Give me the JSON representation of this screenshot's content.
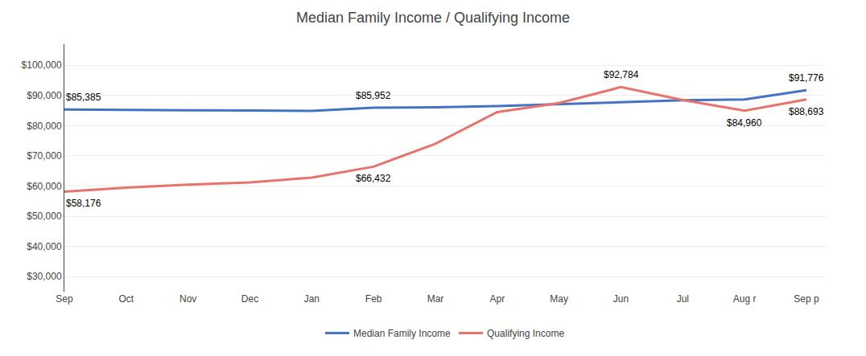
{
  "chart_data": {
    "type": "line",
    "title": "Median Family Income / Qualifying Income",
    "categories": [
      "Sep",
      "Oct",
      "Nov",
      "Dec",
      "Jan",
      "Feb",
      "Mar",
      "Apr",
      "May",
      "Jun",
      "Jul",
      "Aug r",
      "Sep p"
    ],
    "series": [
      {
        "name": "Median Family Income",
        "color": "#4472C4",
        "values": [
          85385,
          85200,
          85100,
          85050,
          84900,
          85952,
          86100,
          86500,
          87200,
          87800,
          88400,
          88693,
          91776
        ]
      },
      {
        "name": "Qualifying Income",
        "color": "#E8736C",
        "values": [
          58176,
          59500,
          60500,
          61200,
          62800,
          66432,
          74000,
          84500,
          87500,
          92784,
          88500,
          84960,
          88693
        ]
      }
    ],
    "ylim": [
      25000,
      107000
    ],
    "yticks": [
      {
        "value": 30000,
        "label": "$30,000"
      },
      {
        "value": 40000,
        "label": "$40,000"
      },
      {
        "value": 50000,
        "label": "$50,000"
      },
      {
        "value": 60000,
        "label": "$60,000"
      },
      {
        "value": 70000,
        "label": "$70,000"
      },
      {
        "value": 80000,
        "label": "$80,000"
      },
      {
        "value": 90000,
        "label": "$90,000"
      },
      {
        "value": 100000,
        "label": "$100,000"
      }
    ],
    "grid": true,
    "legend": "bottom",
    "annotations": [
      {
        "series": "Median Family Income",
        "x": "Sep",
        "y": 85385,
        "text": "$85,385"
      },
      {
        "series": "Median Family Income",
        "x": "Feb",
        "y": 85952,
        "text": "$85,952"
      },
      {
        "series": "Median Family Income",
        "x": "Sep p",
        "y": 91776,
        "text": "$91,776"
      },
      {
        "series": "Qualifying Income",
        "x": "Sep",
        "y": 58176,
        "text": "$58,176"
      },
      {
        "series": "Qualifying Income",
        "x": "Feb",
        "y": 66432,
        "text": "$66,432"
      },
      {
        "series": "Qualifying Income",
        "x": "Jun",
        "y": 92784,
        "text": "$92,784"
      },
      {
        "series": "Qualifying Income",
        "x": "Aug r",
        "y": 84960,
        "text": "$84,960"
      },
      {
        "series": "Qualifying Income",
        "x": "Sep p",
        "y": 88693,
        "text": "$88,693"
      }
    ]
  }
}
